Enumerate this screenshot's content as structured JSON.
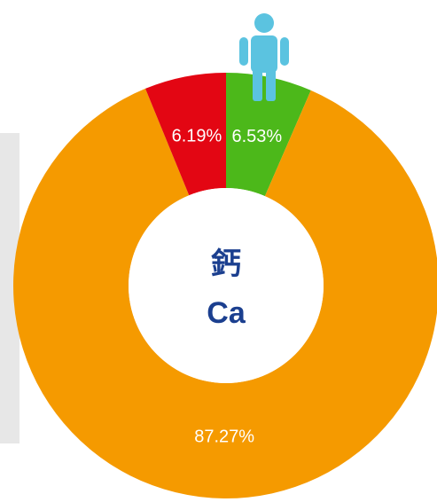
{
  "chart_data": {
    "type": "donut",
    "values": [
      6.53,
      87.27,
      6.19
    ],
    "value_labels": [
      "6.53%",
      "87.27%",
      "6.19%"
    ],
    "colors": [
      "#4cb81a",
      "#f59a00",
      "#e30613"
    ],
    "center_label": "鈣",
    "center_sublabel": "Ca"
  }
}
